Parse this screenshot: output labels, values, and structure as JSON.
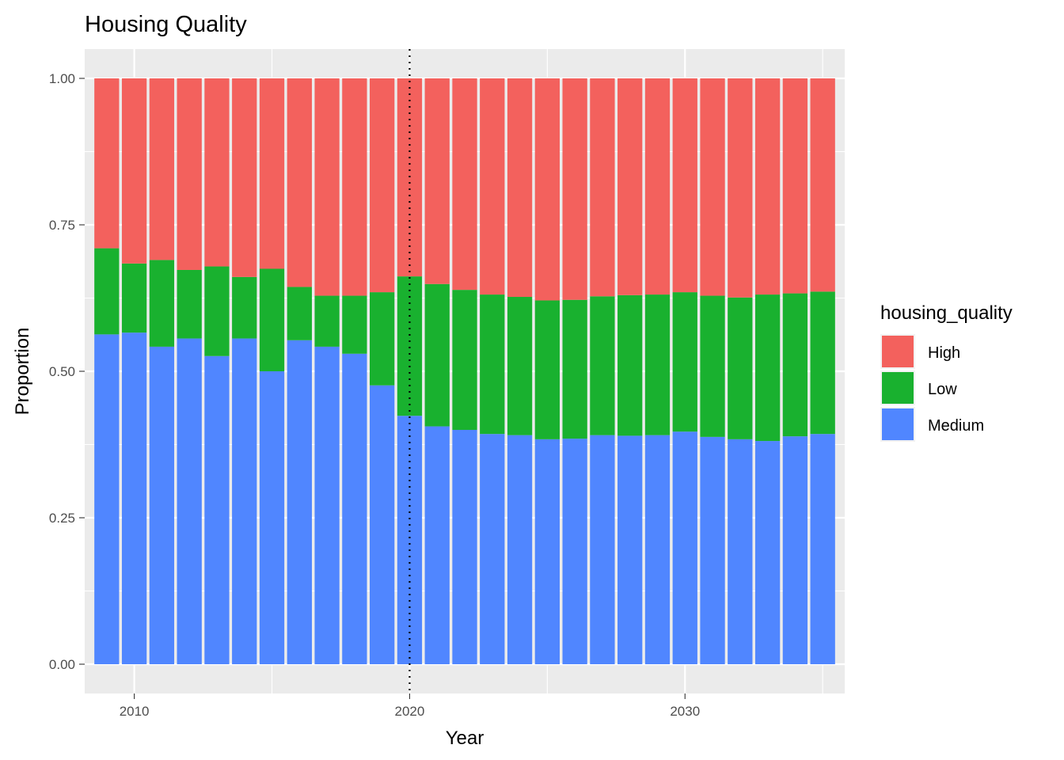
{
  "chart_data": {
    "type": "bar",
    "stacked": true,
    "title": "Housing Quality",
    "xlabel": "Year",
    "ylabel": "Proportion",
    "x": [
      2009,
      2010,
      2011,
      2012,
      2013,
      2014,
      2015,
      2016,
      2017,
      2018,
      2019,
      2020,
      2021,
      2022,
      2023,
      2024,
      2025,
      2026,
      2027,
      2028,
      2029,
      2030,
      2031,
      2032,
      2033,
      2034,
      2035
    ],
    "xlim": [
      2008.2,
      2035.8
    ],
    "ylim": [
      -0.05,
      1.05
    ],
    "x_ticks": [
      2010,
      2020,
      2030
    ],
    "x_tick_labels": [
      "2010",
      "2020",
      "2030"
    ],
    "y_ticks": [
      0,
      0.25,
      0.5,
      0.75,
      1.0
    ],
    "y_tick_labels": [
      "0.00",
      "0.25",
      "0.50",
      "0.75",
      "1.00"
    ],
    "vline": {
      "x": 2020,
      "style": "dotted",
      "color": "#000000"
    },
    "grid": true,
    "legend": {
      "title": "housing_quality",
      "position": "right"
    },
    "series": [
      {
        "name": "Medium",
        "color": "#5086FF",
        "values": [
          0.563,
          0.566,
          0.542,
          0.556,
          0.526,
          0.556,
          0.5,
          0.553,
          0.542,
          0.53,
          0.476,
          0.424,
          0.406,
          0.4,
          0.393,
          0.391,
          0.384,
          0.385,
          0.391,
          0.39,
          0.391,
          0.397,
          0.388,
          0.384,
          0.381,
          0.389,
          0.393
        ]
      },
      {
        "name": "Low",
        "color": "#19B12F",
        "values": [
          0.147,
          0.118,
          0.148,
          0.117,
          0.153,
          0.105,
          0.175,
          0.091,
          0.087,
          0.099,
          0.159,
          0.238,
          0.243,
          0.239,
          0.238,
          0.236,
          0.237,
          0.237,
          0.237,
          0.24,
          0.24,
          0.238,
          0.241,
          0.242,
          0.25,
          0.244,
          0.243
        ]
      },
      {
        "name": "High",
        "color": "#F3615D",
        "values": [
          0.29,
          0.316,
          0.31,
          0.327,
          0.321,
          0.339,
          0.325,
          0.356,
          0.371,
          0.371,
          0.365,
          0.338,
          0.351,
          0.361,
          0.369,
          0.373,
          0.379,
          0.378,
          0.372,
          0.37,
          0.369,
          0.365,
          0.371,
          0.374,
          0.369,
          0.367,
          0.364
        ]
      }
    ],
    "legend_order": [
      "High",
      "Low",
      "Medium"
    ]
  }
}
